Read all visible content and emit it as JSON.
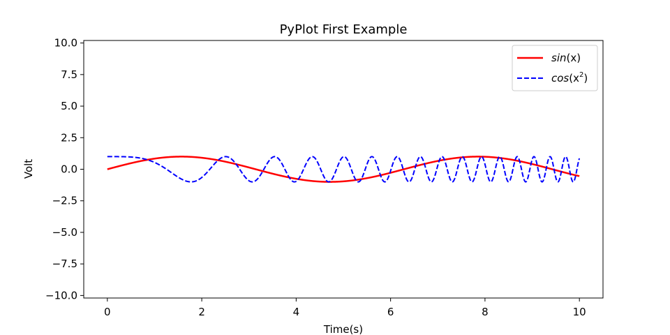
{
  "chart_data": {
    "type": "line",
    "title": "PyPlot First Example",
    "xlabel": "Time(s)",
    "ylabel": "Volt",
    "xlim": [
      -0.5,
      10.5
    ],
    "ylim": [
      -10.2,
      10.2
    ],
    "x_ticks": [
      0,
      2,
      4,
      6,
      8,
      10
    ],
    "x_tick_labels": [
      "0",
      "2",
      "4",
      "6",
      "8",
      "10"
    ],
    "y_ticks": [
      10,
      7.5,
      5,
      2.5,
      0,
      -2.5,
      -5,
      -7.5,
      -10
    ],
    "y_tick_labels": [
      "10.0",
      "7.5",
      "5.0",
      "2.5",
      "0.0",
      "−2.5",
      "−5.0",
      "−7.5",
      "−10.0"
    ],
    "grid": false,
    "legend_position": "top-right",
    "series": [
      {
        "name": "sin(x)",
        "legend_base": "sin",
        "legend_arg": "(x)",
        "function": "sin(x)",
        "x_range": [
          0,
          10
        ],
        "color": "#ff0000",
        "style": "solid"
      },
      {
        "name": "cos(x^2)",
        "legend_base": "cos",
        "legend_arg_open": "(x",
        "legend_sup": "2",
        "legend_arg_close": ")",
        "function": "cos(x^2)",
        "x_range": [
          0,
          10
        ],
        "color": "#0000ff",
        "style": "dashed"
      }
    ]
  }
}
